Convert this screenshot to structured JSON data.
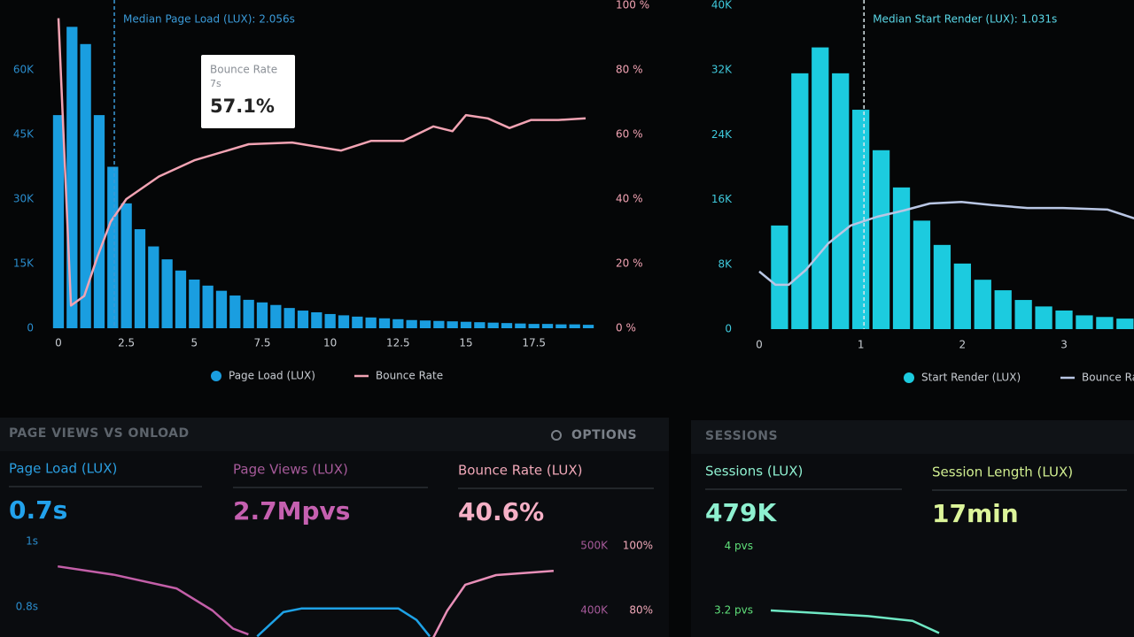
{
  "chart_data": [
    {
      "type": "bar",
      "xlim": [
        -0.4,
        19.9
      ],
      "xticks": [
        0,
        2.5,
        5,
        7.5,
        10,
        12.5,
        15,
        17.5
      ],
      "ylim": [
        0,
        75000
      ],
      "yticks": [
        0,
        {
          "value": 15000,
          "label": "15K"
        },
        {
          "value": 30000,
          "label": "30K"
        },
        {
          "value": 45000,
          "label": "45K"
        },
        {
          "value": 60000,
          "label": "60K"
        }
      ],
      "y2lim": [
        0,
        100
      ],
      "y2ticks": [
        {
          "value": 0,
          "label": "0 %"
        },
        {
          "value": 20,
          "label": "20 %"
        },
        {
          "value": 40,
          "label": "40 %"
        },
        {
          "value": 60,
          "label": "60 %"
        },
        {
          "value": 80,
          "label": "80 %"
        },
        {
          "value": 100,
          "label": "100 %"
        }
      ],
      "legend": true,
      "annotations": [
        {
          "text": "Median Page Load (LUX): 2.056s",
          "x": 2.056
        }
      ],
      "tooltip": {
        "title": "Bounce Rate",
        "subtitle": "7s",
        "value": "57.1%"
      },
      "series": [
        {
          "name": "Page Load (LUX)",
          "type": "bar",
          "color": "#1a9ee0",
          "x": [
            0,
            0.5,
            1,
            1.5,
            2,
            2.5,
            3,
            3.5,
            4,
            4.5,
            5,
            5.5,
            6,
            6.5,
            7,
            7.5,
            8,
            8.5,
            9,
            9.5,
            10,
            10.5,
            11,
            11.5,
            12,
            12.5,
            13,
            13.5,
            14,
            14.5,
            15,
            15.5,
            16,
            16.5,
            17,
            17.5,
            18,
            18.5,
            19,
            19.5
          ],
          "values": [
            49500,
            70000,
            66000,
            49500,
            37500,
            29000,
            23000,
            19000,
            16000,
            13400,
            11300,
            9900,
            8700,
            7600,
            6600,
            6000,
            5400,
            4700,
            4100,
            3700,
            3300,
            3000,
            2700,
            2500,
            2300,
            2100,
            1900,
            1800,
            1700,
            1600,
            1500,
            1400,
            1300,
            1200,
            1100,
            1000,
            1000,
            900,
            900,
            800
          ]
        },
        {
          "name": "Bounce Rate",
          "type": "line",
          "axis": "y2",
          "color": "#f2a3b3",
          "x": [
            0,
            0.46,
            0.95,
            1.43,
            1.92,
            2.5,
            3.7,
            5,
            7,
            8.6,
            10.4,
            11.5,
            12.7,
            13.8,
            14.5,
            15,
            15.8,
            16.6,
            17.4,
            18.4,
            19.4
          ],
          "values": [
            96,
            7,
            10,
            22,
            33,
            40,
            47,
            52,
            57,
            57.5,
            55,
            58,
            58,
            62.5,
            61,
            66,
            65,
            62,
            64.5,
            64.5,
            65
          ]
        }
      ]
    },
    {
      "type": "bar",
      "xlim": [
        -0.1,
        3.7
      ],
      "xticks": [
        0,
        1,
        2,
        3
      ],
      "ylim": [
        0,
        40000
      ],
      "yticks": [
        0,
        {
          "value": 8000,
          "label": "8K"
        },
        {
          "value": 16000,
          "label": "16K"
        },
        {
          "value": 24000,
          "label": "24K"
        },
        {
          "value": 32000,
          "label": "32K"
        },
        {
          "value": 40000,
          "label": "40K"
        }
      ],
      "y2lim": [
        0,
        100
      ],
      "legend": true,
      "annotations": [
        {
          "text": "Median Start Render (LUX): 1.031s",
          "x": 1.031
        }
      ],
      "series": [
        {
          "name": "Start Render (LUX)",
          "type": "bar",
          "color": "#1ccbdf",
          "x": [
            0.2,
            0.4,
            0.6,
            0.8,
            1,
            1.2,
            1.4,
            1.6,
            1.8,
            2,
            2.2,
            2.4,
            2.6,
            2.8,
            3,
            3.2,
            3.4,
            3.6
          ],
          "values": [
            12800,
            31600,
            34800,
            31600,
            27100,
            22100,
            17500,
            13400,
            10400,
            8100,
            6100,
            4800,
            3600,
            2800,
            2300,
            1700,
            1500,
            1300
          ]
        },
        {
          "name": "Bounce Rate",
          "type": "line",
          "axis": "y2",
          "color": "#b9c6e4",
          "x": [
            0,
            0.16,
            0.29,
            0.46,
            0.68,
            0.9,
            1.16,
            1.42,
            1.68,
            1.99,
            2.29,
            2.64,
            2.99,
            3.43,
            3.69
          ],
          "values": [
            17.8,
            13.7,
            13.7,
            18.3,
            26.5,
            32,
            34.7,
            36.6,
            38.8,
            39.3,
            38.3,
            37.4,
            37.4,
            36.9,
            34.2
          ]
        }
      ]
    },
    {
      "type": "line",
      "xlim": [
        0,
        10
      ],
      "ylim": [
        0.708,
        1.032
      ],
      "yticks": [
        {
          "value": 1,
          "label": "1s"
        },
        {
          "value": 0.8,
          "label": "0.8s"
        }
      ],
      "y2lim": [
        359000,
        523000
      ],
      "y2ticks": [
        {
          "value": 500000,
          "label": "500K"
        },
        {
          "value": 400000,
          "label": "400K"
        }
      ],
      "y3lim": [
        71.8,
        104.7
      ],
      "y3ticks": [
        {
          "value": 100,
          "label": "100%"
        },
        {
          "value": 80,
          "label": "80%"
        }
      ],
      "series": [
        {
          "type": "line",
          "axis": "y2",
          "color": "#c35fa8",
          "x": [
            0.09,
            1.2,
            2.4,
            3.1,
            3.5,
            3.8
          ],
          "values": [
            468000,
            455000,
            434000,
            400000,
            372000,
            363000
          ]
        },
        {
          "type": "line",
          "axis": "y",
          "color": "#1ea2e6",
          "x": [
            3.97,
            4.48,
            4.83,
            6.72,
            7.07,
            7.33
          ],
          "values": [
            0.71,
            0.784,
            0.795,
            0.795,
            0.76,
            0.71
          ]
        },
        {
          "type": "line",
          "axis": "y3",
          "color": "#e88fb8",
          "x": [
            7.38,
            7.67,
            8.02,
            8.62,
            9.74
          ],
          "values": [
            71,
            80,
            88,
            91,
            92.3
          ]
        }
      ]
    },
    {
      "type": "line",
      "xlim": [
        0,
        10
      ],
      "ylim": [
        2.87,
        4.19
      ],
      "yticks": [
        {
          "value": 4,
          "label": "4 pvs"
        },
        {
          "value": 3.2,
          "label": "3.2 pvs"
        }
      ],
      "series": [
        {
          "type": "line",
          "axis": "y",
          "color": "#6fe8c4",
          "x": [
            1.8,
            2.8,
            4,
            5,
            5.6
          ],
          "values": [
            3.2,
            3.17,
            3.13,
            3.07,
            2.92
          ]
        }
      ]
    }
  ],
  "panels": {
    "page_views": {
      "title": "PAGE VIEWS VS ONLOAD",
      "options": "OPTIONS",
      "metrics": [
        {
          "label": "Page Load (LUX)",
          "value": "0.7s"
        },
        {
          "label": "Page Views (LUX)",
          "value": "2.7Mpvs"
        },
        {
          "label": "Bounce Rate (LUX)",
          "value": "40.6%"
        }
      ]
    },
    "sessions": {
      "title": "SESSIONS",
      "metrics": [
        {
          "label": "Sessions (LUX)",
          "value": "479K"
        },
        {
          "label": "Session Length (LUX)",
          "value": "17min"
        }
      ]
    }
  }
}
